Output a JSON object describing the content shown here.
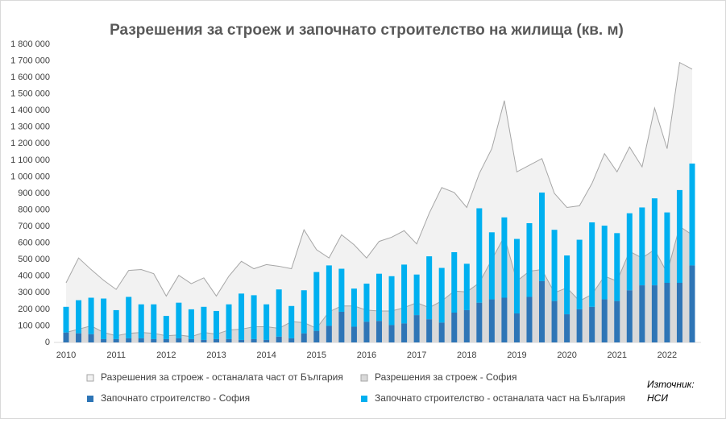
{
  "chart_data": {
    "type": "combo",
    "title": "Разрешения за строеж и започнато строителство на жилища (кв. м)",
    "categories": [
      "2010",
      null,
      null,
      null,
      "2011",
      null,
      null,
      null,
      "2012",
      null,
      null,
      null,
      "2013",
      null,
      null,
      null,
      "2014",
      null,
      null,
      null,
      "2015",
      null,
      null,
      null,
      "2016",
      null,
      null,
      null,
      "2017",
      null,
      null,
      null,
      "2018",
      null,
      null,
      null,
      "2019",
      null,
      null,
      null,
      "2020",
      null,
      null,
      null,
      "2021",
      null,
      null,
      null,
      "2022",
      null,
      null
    ],
    "series": [
      {
        "name": "Разрешения за строеж - останалата част от България",
        "type": "area",
        "color": "#f2f2f2",
        "line_color": "#a6a6a6",
        "values": [
          300000,
          430000,
          340000,
          315000,
          280000,
          380000,
          380000,
          360000,
          240000,
          360000,
          320000,
          330000,
          230000,
          325000,
          410000,
          350000,
          375000,
          375000,
          320000,
          560000,
          475000,
          325000,
          430000,
          370000,
          315000,
          420000,
          445000,
          465000,
          355000,
          570000,
          685000,
          595000,
          510000,
          660000,
          670000,
          820000,
          660000,
          640000,
          670000,
          600000,
          485000,
          575000,
          670000,
          740000,
          660000,
          630000,
          550000,
          855000,
          750000,
          990000,
          1000000
        ]
      },
      {
        "name": "Разрешения за строеж - София",
        "type": "area",
        "color": "#d9d9d9",
        "line_color": "#a6a6a6",
        "values": [
          60000,
          80000,
          100000,
          60000,
          40000,
          55000,
          60000,
          55000,
          40000,
          45000,
          35000,
          60000,
          50000,
          75000,
          80000,
          95000,
          95000,
          85000,
          125000,
          120000,
          85000,
          185000,
          220000,
          220000,
          195000,
          190000,
          190000,
          210000,
          240000,
          210000,
          250000,
          310000,
          305000,
          360000,
          500000,
          640000,
          370000,
          430000,
          440000,
          300000,
          330000,
          250000,
          290000,
          400000,
          370000,
          550000,
          510000,
          560000,
          420000,
          700000,
          650000
        ]
      },
      {
        "name": "Започнато строителство - София",
        "type": "bar",
        "color": "#2e75b6",
        "values": [
          60000,
          55000,
          50000,
          20000,
          20000,
          25000,
          25000,
          20000,
          20000,
          25000,
          20000,
          15000,
          20000,
          20000,
          15000,
          20000,
          15000,
          35000,
          25000,
          55000,
          70000,
          100000,
          185000,
          95000,
          125000,
          130000,
          105000,
          115000,
          165000,
          140000,
          120000,
          180000,
          195000,
          240000,
          260000,
          270000,
          175000,
          275000,
          370000,
          250000,
          170000,
          200000,
          215000,
          260000,
          250000,
          315000,
          345000,
          345000,
          360000,
          360000,
          465000
        ]
      },
      {
        "name": "Започнато строителство - останалата част на България",
        "type": "bar",
        "color": "#00b0f0",
        "values": [
          155000,
          200000,
          220000,
          245000,
          175000,
          250000,
          205000,
          210000,
          140000,
          215000,
          180000,
          200000,
          170000,
          210000,
          280000,
          265000,
          215000,
          285000,
          195000,
          260000,
          355000,
          365000,
          260000,
          230000,
          230000,
          285000,
          295000,
          355000,
          245000,
          380000,
          330000,
          365000,
          280000,
          570000,
          405000,
          485000,
          450000,
          445000,
          535000,
          430000,
          355000,
          420000,
          510000,
          445000,
          410000,
          465000,
          470000,
          525000,
          425000,
          560000,
          615000
        ]
      }
    ],
    "ylim": [
      0,
      1800000
    ],
    "yticks": [
      0,
      {
        "value": 100000,
        "label": "100 000"
      },
      {
        "value": 200000,
        "label": "200 000"
      },
      {
        "value": 300000,
        "label": "300 000"
      },
      {
        "value": 400000,
        "label": "400 000"
      },
      {
        "value": 500000,
        "label": "500 000"
      },
      {
        "value": 600000,
        "label": "600 000"
      },
      {
        "value": 700000,
        "label": "700 000"
      },
      {
        "value": 800000,
        "label": "800 000"
      },
      {
        "value": 900000,
        "label": "900 000"
      },
      {
        "value": 1000000,
        "label": "1 000 000"
      },
      {
        "value": 1100000,
        "label": "1 100 000"
      },
      {
        "value": 1200000,
        "label": "1 200 000"
      },
      {
        "value": 1300000,
        "label": "1 300 000"
      },
      {
        "value": 1400000,
        "label": "1 400 000"
      },
      {
        "value": 1500000,
        "label": "1 500 000"
      },
      {
        "value": 1600000,
        "label": "1 600 000"
      },
      {
        "value": 1700000,
        "label": "1 700 000"
      },
      {
        "value": 1800000,
        "label": "1 800 000"
      }
    ],
    "grid": false,
    "legend": "bottom",
    "source": [
      "Източник:",
      "НСИ"
    ]
  }
}
